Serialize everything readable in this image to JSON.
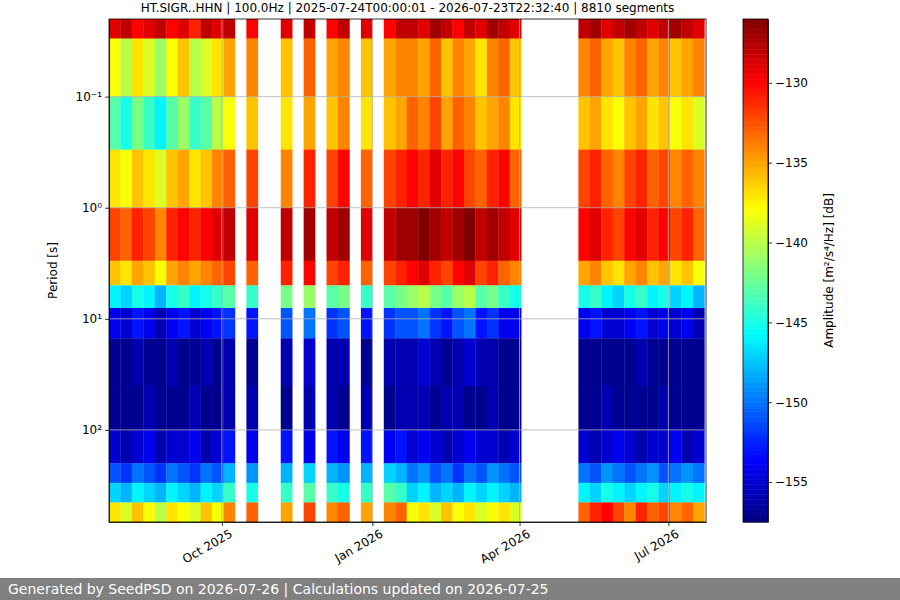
{
  "chart_data": {
    "type": "heatmap",
    "title": "HT.SIGR..HHN | 100.0Hz | 2025-07-24T00:00:01 - 2026-07-23T22:32:40 | 8810 segments",
    "y_label": "Period [s]",
    "x": [
      "2025-07-24",
      "2025-07-31",
      "2025-08-07",
      "2025-08-14",
      "2025-08-21",
      "2025-08-28",
      "2025-09-04",
      "2025-09-11",
      "2025-09-18",
      "2025-09-25",
      "2025-10-02",
      "2025-10-09",
      "2025-10-16",
      "2025-10-23",
      "2025-10-30",
      "2025-11-06",
      "2025-11-13",
      "2025-11-20",
      "2025-11-27",
      "2025-12-04",
      "2025-12-11",
      "2025-12-18",
      "2025-12-25",
      "2026-01-01",
      "2026-01-08",
      "2026-01-15",
      "2026-01-22",
      "2026-01-29",
      "2026-02-05",
      "2026-02-12",
      "2026-02-19",
      "2026-02-26",
      "2026-03-05",
      "2026-03-12",
      "2026-03-19",
      "2026-03-26",
      "2026-04-02",
      "2026-04-09",
      "2026-04-16",
      "2026-04-23",
      "2026-04-30",
      "2026-05-07",
      "2026-05-14",
      "2026-05-21",
      "2026-05-28",
      "2026-06-04",
      "2026-06-11",
      "2026-06-18",
      "2026-06-25",
      "2026-07-02",
      "2026-07-09",
      "2026-07-16",
      "2026-07-23"
    ],
    "y": [
      0.02,
      0.03,
      0.1,
      0.3,
      1,
      3,
      5,
      8,
      15,
      40,
      100,
      200,
      300,
      450,
      675
    ],
    "values": [
      [
        -129,
        -128,
        -130,
        -129,
        -128,
        -130,
        -129,
        -131,
        -128,
        -129,
        -128,
        null,
        -130,
        null,
        null,
        -129,
        null,
        -128,
        null,
        -130,
        -128,
        null,
        -129,
        null,
        -130,
        -128,
        -128,
        -129,
        -127,
        -128,
        -130,
        -128,
        -129,
        -127,
        -128,
        -129,
        null,
        null,
        null,
        null,
        null,
        -128,
        -127,
        -129,
        -128,
        -127,
        -128,
        -129,
        -128,
        -127,
        -128,
        -129
      ],
      [
        -138,
        -140,
        -137,
        -139,
        -141,
        -138,
        -136,
        -140,
        -139,
        -137,
        -135,
        null,
        -134,
        null,
        null,
        -136,
        null,
        -133,
        null,
        -135,
        -134,
        null,
        -136,
        null,
        -135,
        -134,
        -134,
        -135,
        -133,
        -136,
        -134,
        -135,
        -137,
        -134,
        -133,
        -136,
        null,
        null,
        null,
        null,
        null,
        -134,
        -133,
        -135,
        -136,
        -134,
        -133,
        -135,
        -134,
        -136,
        -135,
        -134
      ],
      [
        -143,
        -145,
        -142,
        -144,
        -146,
        -143,
        -141,
        -144,
        -143,
        -140,
        -138,
        null,
        -136,
        null,
        null,
        -137,
        null,
        -135,
        null,
        -136,
        -134,
        null,
        -137,
        null,
        -136,
        -135,
        -133,
        -134,
        -132,
        -135,
        -133,
        -134,
        -136,
        -135,
        -134,
        -137,
        null,
        null,
        null,
        null,
        null,
        -136,
        -135,
        -137,
        -138,
        -136,
        -135,
        -137,
        -136,
        -138,
        -137,
        -139
      ],
      [
        -137,
        -138,
        -136,
        -137,
        -139,
        -136,
        -135,
        -137,
        -136,
        -134,
        -133,
        null,
        -132,
        null,
        null,
        -134,
        null,
        -131,
        null,
        -132,
        -130,
        null,
        -133,
        null,
        -132,
        -131,
        -130,
        -131,
        -129,
        -131,
        -130,
        -132,
        -133,
        -131,
        -130,
        -133,
        null,
        null,
        null,
        null,
        null,
        -132,
        -131,
        -133,
        -134,
        -132,
        -131,
        -133,
        -132,
        -134,
        -133,
        -134
      ],
      [
        -132,
        -133,
        -131,
        -132,
        -134,
        -131,
        -130,
        -131,
        -130,
        -129,
        -128,
        null,
        -129,
        null,
        null,
        -128,
        null,
        -127,
        null,
        -128,
        -127,
        null,
        -129,
        null,
        -128,
        -127,
        -127,
        -126,
        -127,
        -128,
        -127,
        -126,
        -128,
        -127,
        -128,
        -129,
        null,
        null,
        null,
        null,
        null,
        -130,
        -129,
        -131,
        -132,
        -130,
        -129,
        -131,
        -130,
        -132,
        -131,
        -133
      ],
      [
        -136,
        -137,
        -135,
        -136,
        -138,
        -135,
        -134,
        -135,
        -134,
        -133,
        -132,
        null,
        -133,
        null,
        null,
        -131,
        null,
        -130,
        null,
        -132,
        -131,
        null,
        -133,
        null,
        -132,
        -131,
        -130,
        -129,
        -131,
        -132,
        -130,
        -129,
        -132,
        -131,
        -133,
        -134,
        null,
        null,
        null,
        null,
        null,
        -135,
        -134,
        -136,
        -137,
        -135,
        -134,
        -136,
        -135,
        -137,
        -136,
        -138
      ],
      [
        -146,
        -147,
        -145,
        -146,
        -148,
        -145,
        -144,
        -146,
        -145,
        -144,
        -143,
        null,
        -144,
        null,
        null,
        -142,
        null,
        -141,
        null,
        -143,
        -142,
        null,
        -144,
        null,
        -143,
        -142,
        -141,
        -140,
        -142,
        -143,
        -141,
        -140,
        -143,
        -142,
        -144,
        -145,
        null,
        null,
        null,
        null,
        null,
        -145,
        -144,
        -146,
        -147,
        -145,
        -144,
        -146,
        -145,
        -147,
        -146,
        -148
      ],
      [
        -154,
        -155,
        -153,
        -154,
        -156,
        -154,
        -153,
        -155,
        -154,
        -153,
        -152,
        null,
        -153,
        null,
        null,
        -151,
        null,
        -150,
        null,
        -152,
        -151,
        null,
        -153,
        null,
        -152,
        -151,
        -151,
        -150,
        -152,
        -153,
        -151,
        -150,
        -153,
        -152,
        -154,
        -154,
        null,
        null,
        null,
        null,
        null,
        -154,
        -153,
        -155,
        -155,
        -154,
        -153,
        -155,
        -154,
        -155,
        -154,
        -156
      ],
      [
        -157,
        -157,
        -156,
        -157,
        -157,
        -156,
        -157,
        -157,
        -156,
        -157,
        -156,
        null,
        -157,
        null,
        null,
        -156,
        null,
        -155,
        null,
        -156,
        -156,
        null,
        -157,
        null,
        -156,
        -156,
        -156,
        -155,
        -156,
        -157,
        -156,
        -155,
        -156,
        -156,
        -157,
        -157,
        null,
        null,
        null,
        null,
        null,
        -157,
        -157,
        -157,
        -157,
        -157,
        -156,
        -157,
        -157,
        -157,
        -157,
        -157
      ],
      [
        -157,
        -157,
        -157,
        -156,
        -157,
        -157,
        -157,
        -156,
        -157,
        -157,
        -156,
        null,
        -156,
        null,
        null,
        -157,
        null,
        -156,
        null,
        -156,
        -157,
        null,
        -156,
        null,
        -157,
        -156,
        -156,
        -156,
        -157,
        -156,
        -156,
        -157,
        -157,
        -156,
        -157,
        -157,
        null,
        null,
        null,
        null,
        null,
        -157,
        -157,
        -156,
        -157,
        -157,
        -157,
        -157,
        -156,
        -157,
        -157,
        -157
      ],
      [
        -155,
        -156,
        -155,
        -154,
        -156,
        -155,
        -155,
        -154,
        -156,
        -155,
        -153,
        null,
        -154,
        null,
        null,
        -153,
        null,
        -154,
        null,
        -153,
        -154,
        null,
        -153,
        null,
        -154,
        -153,
        -155,
        -154,
        -155,
        -156,
        -155,
        -154,
        -155,
        -155,
        -156,
        -155,
        null,
        null,
        null,
        null,
        null,
        -155,
        -156,
        -155,
        -154,
        -155,
        -156,
        -155,
        -155,
        -154,
        -156,
        -155
      ],
      [
        -151,
        -152,
        -150,
        -151,
        -152,
        -150,
        -151,
        -152,
        -150,
        -151,
        -148,
        null,
        -149,
        null,
        null,
        -148,
        null,
        -147,
        null,
        -148,
        -149,
        null,
        -148,
        null,
        -147,
        -148,
        -150,
        -149,
        -151,
        -150,
        -152,
        -150,
        -151,
        -149,
        -150,
        -151,
        null,
        null,
        null,
        null,
        null,
        -150,
        -151,
        -149,
        -150,
        -151,
        -150,
        -149,
        -151,
        -150,
        -149,
        -150
      ],
      [
        -147,
        -148,
        -146,
        -147,
        -148,
        -146,
        -147,
        -148,
        -146,
        -147,
        -144,
        null,
        -145,
        null,
        null,
        -144,
        null,
        -143,
        null,
        -144,
        -145,
        null,
        -144,
        null,
        -143,
        -144,
        -147,
        -146,
        -148,
        -147,
        -148,
        -146,
        -147,
        -146,
        -147,
        -148,
        null,
        null,
        null,
        null,
        null,
        -146,
        -147,
        -145,
        -146,
        -147,
        -146,
        -145,
        -147,
        -146,
        -145,
        -146
      ],
      [
        -137,
        -139,
        -136,
        -138,
        -140,
        -137,
        -138,
        -139,
        -136,
        -138,
        -134,
        null,
        -133,
        null,
        null,
        -135,
        null,
        -132,
        null,
        -134,
        -133,
        null,
        -135,
        null,
        -134,
        -133,
        -138,
        -137,
        -139,
        -136,
        -138,
        -137,
        -139,
        -138,
        -137,
        -139,
        null,
        null,
        null,
        null,
        null,
        -133,
        -131,
        -130,
        -132,
        -134,
        -131,
        -133,
        -132,
        -134,
        -133,
        -135
      ]
    ],
    "xlim": [
      "2025-07-24",
      "2026-07-24"
    ],
    "ylim": [
      0.02,
      675
    ],
    "xticks": [
      {
        "value": "2025-10-01",
        "label": "Oct 2025"
      },
      {
        "value": "2026-01-01",
        "label": "Jan 2026"
      },
      {
        "value": "2026-04-01",
        "label": "Apr 2026"
      },
      {
        "value": "2026-07-01",
        "label": "Jul 2026"
      }
    ],
    "yticks": [
      {
        "value": 0.1,
        "label": "10⁻¹"
      },
      {
        "value": 1,
        "label": "10⁰"
      },
      {
        "value": 10,
        "label": "10¹"
      },
      {
        "value": 100,
        "label": "10²"
      }
    ],
    "log": "y",
    "grid": true,
    "colorbar": {
      "label": "Amplitude [m²/s⁴/Hz] [dB]",
      "range": [
        -157.5,
        -126
      ],
      "ticks": [
        {
          "value": -155,
          "label": "−155"
        },
        {
          "value": -150,
          "label": "−150"
        },
        {
          "value": -145,
          "label": "−145"
        },
        {
          "value": -140,
          "label": "−140"
        },
        {
          "value": -135,
          "label": "−135"
        },
        {
          "value": -130,
          "label": "−130"
        }
      ]
    },
    "footer": "Generated by SeedPSD on 2026-07-26 | Calculations updated on 2026-07-25"
  }
}
